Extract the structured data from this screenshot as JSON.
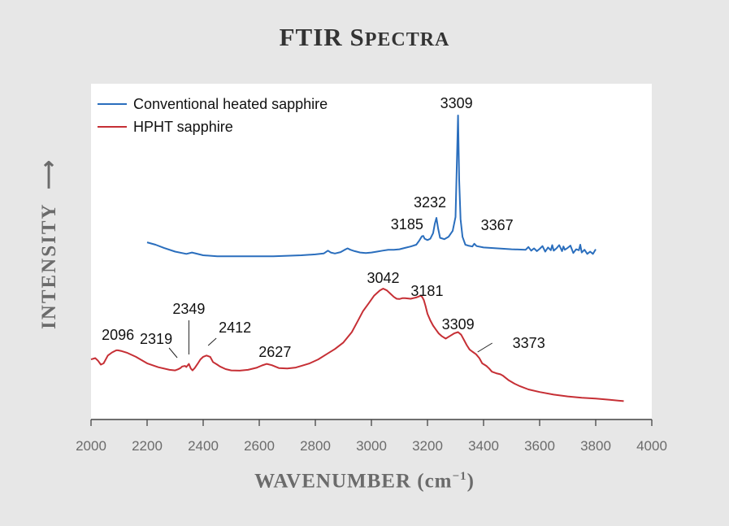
{
  "title_main": "FTIR S",
  "title_smallcaps": "PECTRA",
  "xlabel_main": "WAVENUMBER (cm",
  "xlabel_sup": "−1",
  "xlabel_close": ")",
  "ylabel": "INTENSITY",
  "ylabel_arrow": "⟶",
  "chart_data": {
    "type": "line",
    "title": "FTIR Spectra",
    "xlabel": "Wavenumber (cm−1)",
    "ylabel": "Intensity",
    "xlim": [
      2000,
      4000
    ],
    "xticks": [
      2000,
      2200,
      2400,
      2600,
      2800,
      3000,
      3200,
      3400,
      3600,
      3800,
      4000
    ],
    "ylim": [
      0,
      1
    ],
    "yticks_shown": false,
    "grid": false,
    "legend_position": "top-left",
    "series": [
      {
        "name": "Conventional heated sapphire",
        "color": "#2a6ebd",
        "x": [
          2200,
          2230,
          2260,
          2300,
          2340,
          2360,
          2400,
          2450,
          2500,
          2550,
          2600,
          2650,
          2700,
          2750,
          2800,
          2830,
          2845,
          2855,
          2870,
          2890,
          2905,
          2915,
          2925,
          2940,
          2960,
          2980,
          3000,
          3020,
          3040,
          3060,
          3080,
          3100,
          3120,
          3140,
          3160,
          3170,
          3180,
          3185,
          3190,
          3200,
          3210,
          3220,
          3226,
          3232,
          3238,
          3245,
          3260,
          3275,
          3290,
          3300,
          3305,
          3309,
          3313,
          3318,
          3325,
          3335,
          3345,
          3360,
          3367,
          3375,
          3400,
          3450,
          3500,
          3550,
          3560,
          3570,
          3580,
          3590,
          3600,
          3610,
          3620,
          3630,
          3640,
          3645,
          3650,
          3660,
          3670,
          3680,
          3685,
          3690,
          3700,
          3710,
          3720,
          3730,
          3740,
          3745,
          3750,
          3760,
          3770,
          3780,
          3790,
          3800
        ],
        "y": [
          0.725,
          0.72,
          0.713,
          0.705,
          0.7,
          0.703,
          0.697,
          0.695,
          0.695,
          0.695,
          0.695,
          0.695,
          0.696,
          0.697,
          0.699,
          0.701,
          0.707,
          0.703,
          0.701,
          0.704,
          0.709,
          0.712,
          0.709,
          0.706,
          0.703,
          0.702,
          0.703,
          0.705,
          0.707,
          0.709,
          0.709,
          0.71,
          0.713,
          0.716,
          0.72,
          0.728,
          0.738,
          0.739,
          0.733,
          0.73,
          0.733,
          0.745,
          0.765,
          0.778,
          0.755,
          0.735,
          0.732,
          0.737,
          0.75,
          0.78,
          0.9,
          1.0,
          0.86,
          0.775,
          0.737,
          0.72,
          0.718,
          0.716,
          0.722,
          0.717,
          0.714,
          0.712,
          0.71,
          0.709,
          0.715,
          0.707,
          0.712,
          0.706,
          0.711,
          0.717,
          0.705,
          0.714,
          0.708,
          0.719,
          0.707,
          0.712,
          0.719,
          0.706,
          0.716,
          0.709,
          0.713,
          0.718,
          0.702,
          0.71,
          0.708,
          0.72,
          0.703,
          0.709,
          0.7,
          0.705,
          0.7,
          0.71
        ]
      },
      {
        "name": "HPHT sapphire",
        "color": "#c62f35",
        "x": [
          2000,
          2015,
          2025,
          2035,
          2045,
          2060,
          2075,
          2090,
          2096,
          2110,
          2130,
          2160,
          2200,
          2240,
          2280,
          2300,
          2310,
          2319,
          2325,
          2335,
          2340,
          2349,
          2356,
          2362,
          2370,
          2380,
          2390,
          2400,
          2412,
          2425,
          2435,
          2450,
          2460,
          2480,
          2500,
          2530,
          2560,
          2590,
          2610,
          2627,
          2645,
          2670,
          2700,
          2730,
          2750,
          2780,
          2810,
          2840,
          2870,
          2900,
          2930,
          2950,
          2970,
          2990,
          3010,
          3030,
          3042,
          3055,
          3070,
          3080,
          3090,
          3100,
          3110,
          3120,
          3140,
          3160,
          3170,
          3175,
          3181,
          3187,
          3193,
          3200,
          3210,
          3220,
          3230,
          3240,
          3250,
          3265,
          3280,
          3295,
          3309,
          3320,
          3330,
          3340,
          3350,
          3360,
          3373,
          3385,
          3395,
          3410,
          3420,
          3430,
          3445,
          3460,
          3470,
          3490,
          3510,
          3530,
          3560,
          3600,
          3650,
          3700,
          3750,
          3800,
          3850,
          3900
        ],
        "y": [
          0.325,
          0.33,
          0.32,
          0.305,
          0.31,
          0.34,
          0.352,
          0.36,
          0.36,
          0.357,
          0.35,
          0.335,
          0.31,
          0.295,
          0.285,
          0.283,
          0.287,
          0.292,
          0.298,
          0.3,
          0.296,
          0.308,
          0.29,
          0.283,
          0.292,
          0.308,
          0.325,
          0.335,
          0.34,
          0.335,
          0.315,
          0.305,
          0.298,
          0.288,
          0.283,
          0.282,
          0.285,
          0.293,
          0.302,
          0.308,
          0.303,
          0.292,
          0.29,
          0.294,
          0.3,
          0.31,
          0.325,
          0.345,
          0.365,
          0.39,
          0.43,
          0.47,
          0.51,
          0.54,
          0.57,
          0.59,
          0.597,
          0.59,
          0.575,
          0.565,
          0.558,
          0.557,
          0.56,
          0.56,
          0.558,
          0.563,
          0.567,
          0.57,
          0.565,
          0.553,
          0.53,
          0.5,
          0.475,
          0.455,
          0.44,
          0.425,
          0.415,
          0.405,
          0.415,
          0.425,
          0.43,
          0.42,
          0.4,
          0.38,
          0.363,
          0.355,
          0.345,
          0.33,
          0.31,
          0.3,
          0.29,
          0.278,
          0.272,
          0.268,
          0.262,
          0.245,
          0.232,
          0.222,
          0.21,
          0.2,
          0.19,
          0.183,
          0.178,
          0.175,
          0.17,
          0.165
        ]
      }
    ],
    "annotations": [
      {
        "text": "3309",
        "series": "Conventional heated sapphire",
        "x": 3309
      },
      {
        "text": "3232",
        "series": "Conventional heated sapphire",
        "x": 3232
      },
      {
        "text": "3185",
        "series": "Conventional heated sapphire",
        "x": 3185
      },
      {
        "text": "3367",
        "series": "Conventional heated sapphire",
        "x": 3367
      },
      {
        "text": "2096",
        "series": "HPHT sapphire",
        "x": 2096
      },
      {
        "text": "2319",
        "series": "HPHT sapphire",
        "x": 2319
      },
      {
        "text": "2349",
        "series": "HPHT sapphire",
        "x": 2349
      },
      {
        "text": "2412",
        "series": "HPHT sapphire",
        "x": 2412
      },
      {
        "text": "2627",
        "series": "HPHT sapphire",
        "x": 2627
      },
      {
        "text": "3042",
        "series": "HPHT sapphire",
        "x": 3042
      },
      {
        "text": "3181",
        "series": "HPHT sapphire",
        "x": 3181
      },
      {
        "text": "3309",
        "series": "HPHT sapphire",
        "x": 3309
      },
      {
        "text": "3373",
        "series": "HPHT sapphire",
        "x": 3373
      }
    ]
  }
}
